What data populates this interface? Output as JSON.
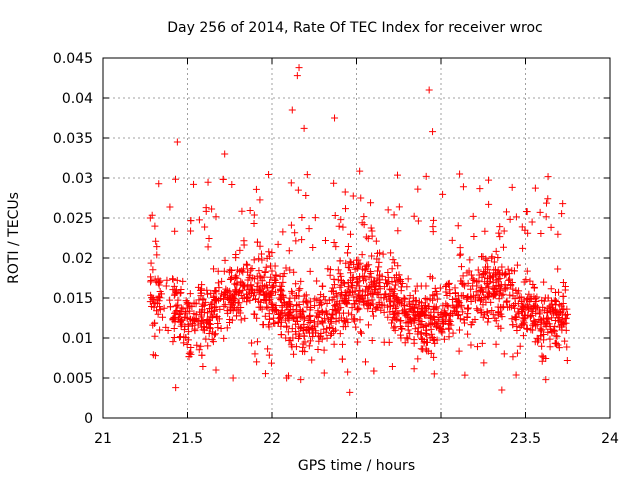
{
  "chart_data": {
    "type": "scatter",
    "title": "Day 256 of 2014, Rate Of TEC Index for receiver wroc",
    "xlabel": "GPS time / hours",
    "ylabel": "ROTI / TECUs",
    "xlim": [
      21,
      24
    ],
    "ylim": [
      0,
      0.045
    ],
    "xticks": [
      21,
      21.5,
      22,
      22.5,
      23,
      23.5,
      24
    ],
    "xtick_labels": [
      "21",
      "21.5",
      "22",
      "22.5",
      "23",
      "23.5",
      "24"
    ],
    "yticks": [
      0,
      0.005,
      0.01,
      0.015,
      0.02,
      0.025,
      0.03,
      0.035,
      0.04,
      0.045
    ],
    "ytick_labels": [
      "0",
      "0.005",
      "0.01",
      "0.015",
      "0.02",
      "0.025",
      "0.03",
      "0.035",
      "0.04",
      "0.045"
    ],
    "grid": true,
    "marker": "+",
    "marker_color": "#ff0000",
    "x_span": [
      21.28,
      23.75
    ],
    "y_typical_range": [
      0.005,
      0.027
    ],
    "notable_points": [
      {
        "x": 22.16,
        "y": 0.0438
      },
      {
        "x": 22.15,
        "y": 0.0428
      },
      {
        "x": 22.93,
        "y": 0.041
      },
      {
        "x": 22.12,
        "y": 0.0385
      },
      {
        "x": 22.37,
        "y": 0.0375
      },
      {
        "x": 22.19,
        "y": 0.0362
      },
      {
        "x": 22.95,
        "y": 0.0358
      },
      {
        "x": 21.44,
        "y": 0.0345
      },
      {
        "x": 21.72,
        "y": 0.033
      },
      {
        "x": 23.11,
        "y": 0.0305
      },
      {
        "x": 22.46,
        "y": 0.0032
      },
      {
        "x": 21.43,
        "y": 0.0038
      },
      {
        "x": 23.36,
        "y": 0.0035
      },
      {
        "x": 22.17,
        "y": 0.0048
      },
      {
        "x": 21.77,
        "y": 0.005
      },
      {
        "x": 23.62,
        "y": 0.0048
      },
      {
        "x": 23.72,
        "y": 0.0268
      },
      {
        "x": 21.28,
        "y": 0.025
      },
      {
        "x": 21.31,
        "y": 0.0078
      }
    ]
  }
}
